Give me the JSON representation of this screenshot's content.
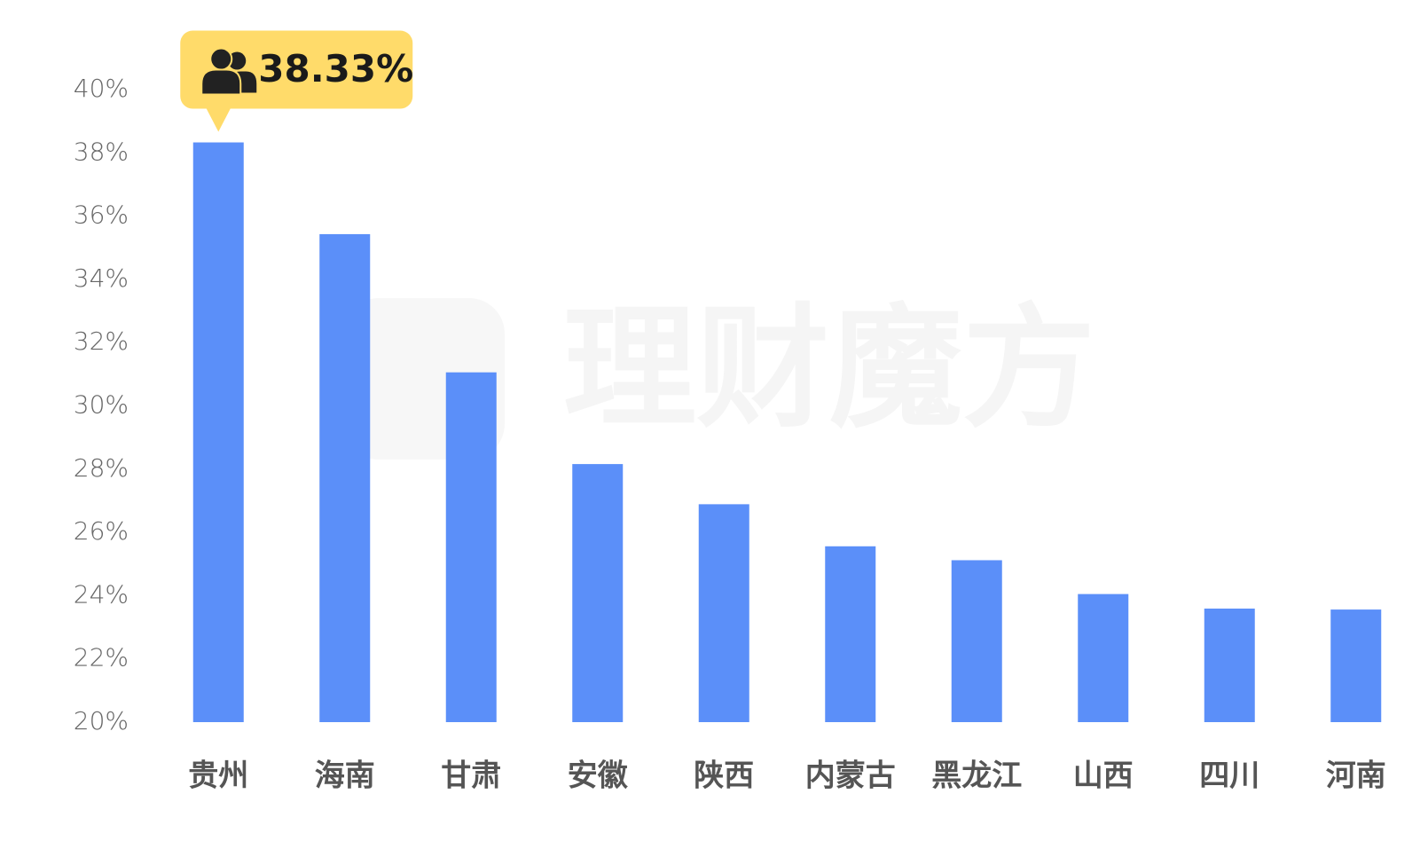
{
  "chart_data": {
    "type": "bar",
    "watermark": "理财魔方",
    "categories": [
      "贵州",
      "海南",
      "甘肃",
      "安徽",
      "陕西",
      "内蒙古",
      "黑龙江",
      "山西",
      "四川",
      "河南"
    ],
    "values": [
      38.33,
      35.43,
      31.06,
      28.16,
      26.89,
      25.56,
      25.12,
      24.05,
      23.59,
      23.56
    ],
    "value_labels": [
      "38.33%",
      null,
      null,
      null,
      null,
      null,
      null,
      null,
      null,
      null
    ],
    "color": "#5b8ff9",
    "label_color": "#ffdb6a",
    "ylim": [
      20,
      40
    ],
    "yticks": [
      {
        "value": 20,
        "label": "20%"
      },
      {
        "value": 22,
        "label": "22%"
      },
      {
        "value": 24,
        "label": "24%"
      },
      {
        "value": 26,
        "label": "26%"
      },
      {
        "value": 28,
        "label": "28%"
      },
      {
        "value": 30,
        "label": "30%"
      },
      {
        "value": 32,
        "label": "32%"
      },
      {
        "value": 34,
        "label": "34%"
      },
      {
        "value": 36,
        "label": "36%"
      },
      {
        "value": 38,
        "label": "38%"
      },
      {
        "value": 40,
        "label": "40%"
      }
    ],
    "grid": false
  }
}
